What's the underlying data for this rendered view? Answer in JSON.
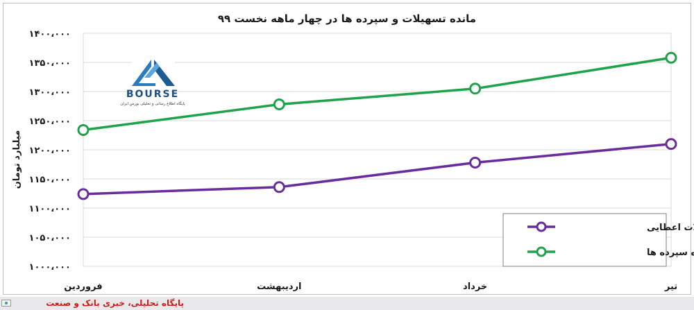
{
  "chart_data": {
    "type": "line",
    "title": "مانده تسهیلات و سپرده ها در چهار ماهه نخست ۹۹",
    "ylabel": "میلیارد تومان",
    "xlabel": "",
    "categories": [
      "فروردین",
      "اردیبهشت",
      "خرداد",
      "تیر"
    ],
    "ylim": [
      1000000,
      1400000
    ],
    "yticks": [
      1000000,
      1050000,
      1100000,
      1150000,
      1200000,
      1250000,
      1300000,
      1350000,
      1400000
    ],
    "ytick_labels": [
      "۱۰۰۰،۰۰۰",
      "۱۰۵۰،۰۰۰",
      "۱۱۰۰،۰۰۰",
      "۱۱۵۰،۰۰۰",
      "۱۲۰۰،۰۰۰",
      "۱۲۵۰،۰۰۰",
      "۱۳۰۰،۰۰۰",
      "۱۳۵۰،۰۰۰",
      "۱۴۰۰،۰۰۰"
    ],
    "grid": true,
    "legend_position": "bottom-right",
    "series": [
      {
        "name": "مانده تسهیلات اعطایی",
        "color": "#6a2c9c",
        "values": [
          1124000,
          1136000,
          1178000,
          1210000
        ]
      },
      {
        "name": "مانده سپرده ها",
        "color": "#1ea34a",
        "values": [
          1234000,
          1278000,
          1305000,
          1358000
        ]
      }
    ]
  },
  "logo": {
    "text": "BOURSE",
    "subtitle": "پایگاه اطلاع رسانی و تحلیلی بورس ایران",
    "colors": [
      "#2a7bbf",
      "#1b5b93"
    ]
  },
  "footer": {
    "text": "پایگاه تحلیلی، خبری بانک و صنعت"
  }
}
